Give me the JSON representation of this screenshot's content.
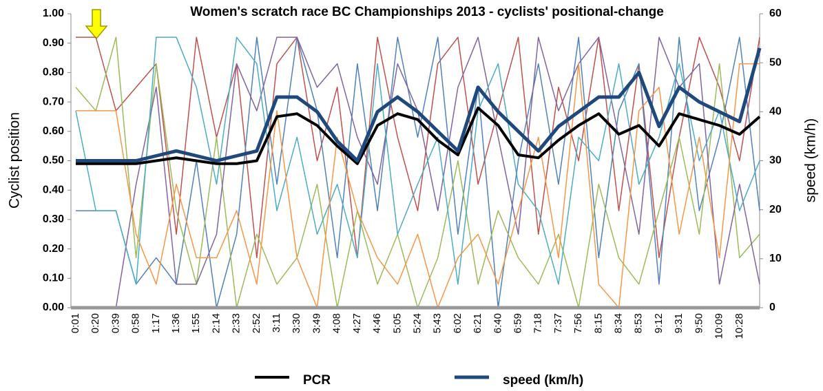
{
  "chart_data": {
    "type": "line",
    "title": "Women's  scratch race BC Championships 2013 - cyclists' positional-change",
    "y_label": "Cyclist position",
    "y2_label": "speed (km/h)",
    "categories": [
      "0:01",
      "0:20",
      "0:39",
      "0:58",
      "1:17",
      "1:36",
      "1:55",
      "2:14",
      "2:33",
      "2:52",
      "3:11",
      "3:30",
      "3:49",
      "4:08",
      "4:27",
      "4:46",
      "5:05",
      "5:24",
      "5:43",
      "6:02",
      "6:21",
      "6:40",
      "6:59",
      "7:18",
      "7:37",
      "7:56",
      "8:15",
      "8:34",
      "8:53",
      "9:12",
      "9:31",
      "9:50",
      "10:09",
      "10:28",
      null
    ],
    "ylim": [
      0,
      1
    ],
    "yticks": [
      {
        "value": 0,
        "label": "0.00"
      },
      {
        "value": 0.1,
        "label": "0.10"
      },
      {
        "value": 0.2,
        "label": "0.20"
      },
      {
        "value": 0.3,
        "label": "0.30"
      },
      {
        "value": 0.4,
        "label": "0.40"
      },
      {
        "value": 0.5,
        "label": "0.50"
      },
      {
        "value": 0.6,
        "label": "0.60"
      },
      {
        "value": 0.7,
        "label": "0.70"
      },
      {
        "value": 0.8,
        "label": "0.80"
      },
      {
        "value": 0.9,
        "label": "0.90"
      },
      {
        "value": 1,
        "label": "1.00"
      }
    ],
    "y2lim": [
      0,
      60
    ],
    "y2ticks": [
      0,
      10,
      20,
      30,
      40,
      50,
      60
    ],
    "series": [
      {
        "color": "#c0504d",
        "values": [
          0.92,
          0.92,
          0.67,
          0.75,
          0.83,
          0.25,
          0.92,
          0.58,
          0.83,
          0.17,
          0.83,
          0.92,
          0.5,
          0.75,
          0.17,
          0.92,
          0.58,
          0.33,
          0.83,
          0.92,
          0.42,
          0.67,
          0.92,
          0.25,
          0.75,
          0.5,
          0.92,
          0.33,
          0.83,
          0.17,
          0.58,
          0.92,
          0.75,
          0.5,
          0.92
        ]
      },
      {
        "color": "#4f81bd",
        "values": [
          0.33,
          0.33,
          0.33,
          0.08,
          0.17,
          0.08,
          0.5,
          0,
          0.25,
          0.92,
          0.42,
          0.92,
          0.67,
          0.17,
          0.83,
          0.33,
          0.92,
          0.58,
          0.92,
          0.25,
          0.75,
          0,
          0.5,
          0.83,
          0.42,
          0.92,
          0.17,
          0.67,
          0.83,
          0.08,
          0.92,
          0.33,
          0.58,
          0.92,
          0.33
        ]
      },
      {
        "color": "#9bbb59",
        "values": [
          0.75,
          0.67,
          0.92,
          0.17,
          0.83,
          0.33,
          0.08,
          0.58,
          0,
          0.25,
          0.08,
          0.17,
          0.42,
          0,
          0.33,
          0.08,
          0.25,
          0,
          0.17,
          0.5,
          0.08,
          0.33,
          0.17,
          0.08,
          0.25,
          0,
          0.42,
          0.17,
          0.08,
          0.33,
          0.58,
          0.25,
          0.83,
          0.17,
          0.25
        ]
      },
      {
        "color": "#8064a2",
        "values": [
          0,
          0,
          0,
          0.42,
          0.75,
          0.08,
          0.08,
          0.25,
          0.83,
          0.67,
          0.92,
          0.92,
          0.75,
          0.83,
          0.58,
          0.42,
          0.83,
          0.67,
          0.33,
          0.75,
          0.92,
          0.58,
          0.25,
          0.92,
          0.67,
          0.83,
          0.92,
          0.58,
          0.25,
          0.92,
          0.75,
          0.83,
          0.08,
          0.42,
          0.08
        ]
      },
      {
        "color": "#4bacc6",
        "values": [
          0.67,
          0.33,
          0.33,
          0.08,
          0.92,
          0.92,
          0.75,
          0.42,
          0.92,
          0.83,
          0.33,
          0.58,
          0.25,
          0.42,
          0.17,
          0.83,
          0.25,
          0.42,
          0.58,
          0.08,
          0.67,
          0.83,
          0.42,
          0.33,
          0.08,
          0.58,
          0.5,
          0.83,
          0.42,
          0.58,
          0.83,
          0.5,
          0.67,
          0.33,
          0.5
        ]
      },
      {
        "color": "#f79646",
        "values": [
          0.67,
          0.67,
          0.67,
          0.25,
          0.08,
          0.42,
          0.17,
          0.17,
          0.33,
          0.08,
          0.67,
          0.17,
          0,
          0.58,
          0.33,
          0.17,
          0.08,
          0.25,
          0,
          0.17,
          0.25,
          0.08,
          0.33,
          0.58,
          0.17,
          0.83,
          0.08,
          0,
          0.67,
          0.75,
          0.25,
          0.58,
          0.17,
          0.83,
          0.83
        ]
      },
      {
        "name": "PCR",
        "color": "#000000",
        "width": 4,
        "values": [
          0.49,
          0.49,
          0.49,
          0.49,
          0.5,
          0.51,
          0.5,
          0.49,
          0.49,
          0.5,
          0.65,
          0.66,
          0.62,
          0.55,
          0.49,
          0.62,
          0.66,
          0.64,
          0.57,
          0.52,
          0.68,
          0.62,
          0.52,
          0.51,
          0.57,
          0.62,
          0.66,
          0.59,
          0.62,
          0.55,
          0.66,
          0.64,
          0.62,
          0.59,
          0.65
        ]
      },
      {
        "name": "speed (km/h)",
        "color": "#1f497d",
        "width": 5,
        "axis": "y2",
        "values": [
          30,
          30,
          30,
          30,
          31,
          32,
          31,
          30,
          31,
          32,
          43,
          43,
          40,
          34,
          30,
          40,
          43,
          40,
          36,
          32,
          45,
          40,
          36,
          32,
          37,
          40,
          43,
          43,
          48,
          37,
          45,
          42,
          40,
          38,
          53
        ]
      }
    ]
  }
}
